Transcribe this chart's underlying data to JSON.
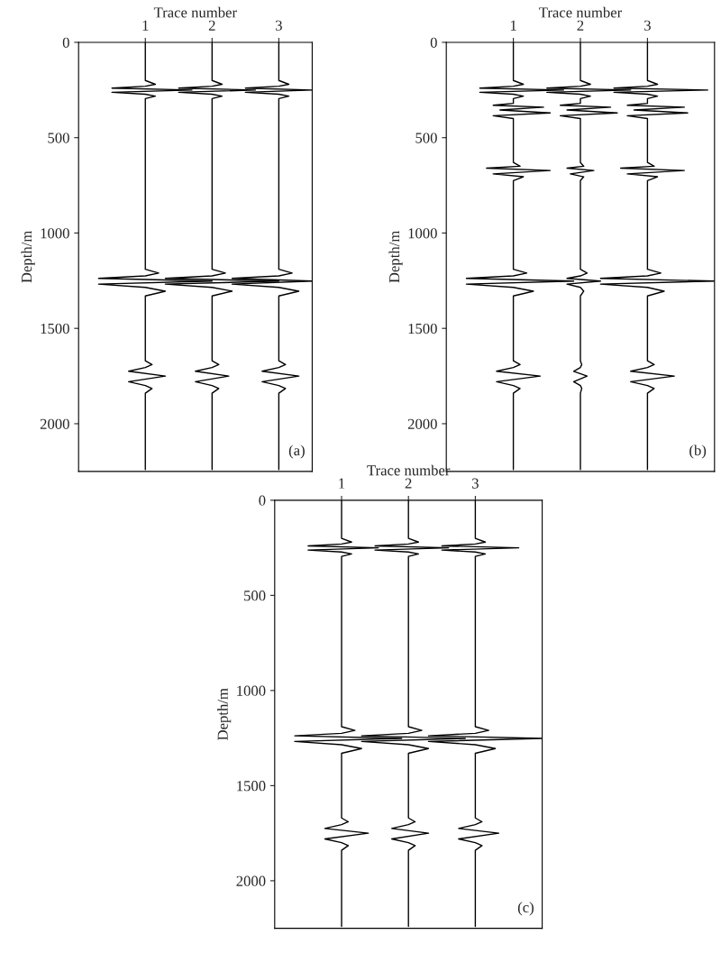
{
  "chart_data": [
    {
      "type": "line",
      "xlabel": "Trace number",
      "ylabel": "Depth/m",
      "xlim": [
        0,
        3.5
      ],
      "xticks": [
        1,
        2,
        3
      ],
      "ylim": [
        2250,
        0
      ],
      "yticks": [
        0,
        500,
        1000,
        1500,
        2000
      ],
      "grid": false,
      "legend": false,
      "line_style": "solid",
      "annotations": [
        "(a)"
      ],
      "series": [
        {
          "color": "#000000",
          "x": [
            1,
            1,
            1.15,
            1,
            0.5,
            1.7,
            0.5,
            1,
            1.15,
            1,
            1,
            1.2,
            1,
            0.3,
            2.0,
            0.3,
            1,
            1.3,
            1,
            1,
            1.1,
            1,
            0.75,
            1.3,
            0.75,
            1,
            1.1,
            1,
            1
          ],
          "values": [
            0,
            200,
            220,
            230,
            240,
            250,
            262,
            272,
            282,
            295,
            1190,
            1210,
            1225,
            1238,
            1252,
            1268,
            1285,
            1305,
            1330,
            1670,
            1690,
            1705,
            1725,
            1750,
            1780,
            1800,
            1815,
            1840,
            2240
          ]
        },
        {
          "color": "#000000",
          "x": [
            2,
            2,
            2.15,
            2,
            1.5,
            2.65,
            1.5,
            2,
            2.15,
            2,
            2,
            2.2,
            2,
            1.3,
            3.0,
            1.3,
            2,
            2.3,
            2,
            2,
            2.1,
            2,
            1.75,
            2.25,
            1.75,
            2,
            2.1,
            2,
            2
          ],
          "values": [
            0,
            200,
            220,
            230,
            240,
            250,
            262,
            272,
            282,
            295,
            1190,
            1210,
            1225,
            1238,
            1252,
            1268,
            1285,
            1305,
            1330,
            1670,
            1690,
            1705,
            1725,
            1750,
            1780,
            1800,
            1815,
            1840,
            2240
          ]
        },
        {
          "color": "#000000",
          "x": [
            3,
            3,
            3.15,
            3,
            2.5,
            3.5,
            2.5,
            3,
            3.15,
            3,
            3,
            3.2,
            3,
            2.3,
            3.5,
            2.3,
            3,
            3.3,
            3,
            3,
            3.1,
            3,
            2.75,
            3.3,
            2.75,
            3,
            3.1,
            3,
            3
          ],
          "values": [
            0,
            200,
            220,
            230,
            240,
            250,
            262,
            272,
            282,
            295,
            1190,
            1210,
            1225,
            1238,
            1252,
            1268,
            1285,
            1305,
            1330,
            1670,
            1690,
            1705,
            1725,
            1750,
            1780,
            1800,
            1815,
            1840,
            2240
          ]
        }
      ]
    },
    {
      "type": "line",
      "xlabel": "Trace number",
      "ylabel": "Depth/m",
      "xlim": [
        0,
        4
      ],
      "xticks": [
        1,
        2,
        3
      ],
      "ylim": [
        2250,
        0
      ],
      "yticks": [
        0,
        500,
        1000,
        1500,
        2000
      ],
      "grid": false,
      "legend": false,
      "line_style": "solid",
      "annotations": [
        "(b)"
      ],
      "series": [
        {
          "color": "#000000",
          "x": [
            1,
            1,
            1.15,
            1,
            0.5,
            1.75,
            0.5,
            1,
            1.15,
            1,
            1,
            0.7,
            1.45,
            0.8,
            1.55,
            0.7,
            1,
            1,
            1.1,
            0.6,
            1.55,
            0.7,
            1.15,
            1,
            1,
            1.2,
            1,
            0.3,
            1.9,
            0.3,
            1,
            1.3,
            1,
            1,
            1.1,
            1,
            0.75,
            1.4,
            0.75,
            1,
            1.1,
            1,
            1
          ],
          "values": [
            0,
            200,
            220,
            230,
            240,
            250,
            262,
            272,
            282,
            295,
            320,
            330,
            340,
            355,
            370,
            385,
            400,
            630,
            650,
            660,
            672,
            690,
            705,
            725,
            1190,
            1210,
            1225,
            1238,
            1252,
            1268,
            1285,
            1305,
            1330,
            1670,
            1690,
            1705,
            1725,
            1750,
            1780,
            1800,
            1815,
            1840,
            2240
          ]
        },
        {
          "color": "#000000",
          "x": [
            2,
            2,
            2.15,
            2,
            1.5,
            2.75,
            1.5,
            2,
            2.15,
            2,
            2,
            1.7,
            2.45,
            1.8,
            2.55,
            1.7,
            2,
            2,
            2.05,
            1.8,
            2.2,
            1.85,
            2.05,
            2,
            2,
            2.1,
            2,
            1.8,
            2.3,
            1.8,
            2,
            2.05,
            2,
            2,
            2.02,
            2,
            1.9,
            2.1,
            1.9,
            2,
            2.02,
            2,
            2
          ],
          "values": [
            0,
            200,
            220,
            230,
            240,
            250,
            262,
            272,
            282,
            295,
            320,
            330,
            340,
            355,
            370,
            385,
            400,
            630,
            650,
            660,
            672,
            690,
            705,
            725,
            1190,
            1210,
            1225,
            1238,
            1252,
            1268,
            1285,
            1305,
            1330,
            1670,
            1690,
            1705,
            1725,
            1750,
            1780,
            1800,
            1815,
            1840,
            2240
          ]
        },
        {
          "color": "#000000",
          "x": [
            3,
            3,
            3.15,
            3,
            2.5,
            3.9,
            2.5,
            3,
            3.15,
            3,
            3,
            2.7,
            3.55,
            2.8,
            3.6,
            2.7,
            3,
            3,
            3.1,
            2.6,
            3.55,
            2.7,
            3.15,
            3,
            3,
            3.2,
            3,
            2.3,
            4.0,
            2.3,
            3,
            3.25,
            3,
            3,
            3.1,
            3,
            2.75,
            3.4,
            2.75,
            3,
            3.1,
            3,
            3
          ],
          "values": [
            0,
            200,
            220,
            230,
            240,
            250,
            262,
            272,
            282,
            295,
            320,
            330,
            340,
            355,
            370,
            385,
            400,
            630,
            650,
            660,
            672,
            690,
            705,
            725,
            1190,
            1210,
            1225,
            1238,
            1252,
            1268,
            1285,
            1305,
            1330,
            1670,
            1690,
            1705,
            1725,
            1750,
            1780,
            1800,
            1815,
            1840,
            2240
          ]
        }
      ]
    },
    {
      "type": "line",
      "xlabel": "Trace number",
      "ylabel": "Depth/m",
      "xlim": [
        0,
        4
      ],
      "xticks": [
        1,
        2,
        3
      ],
      "ylim": [
        2250,
        0
      ],
      "yticks": [
        0,
        500,
        1000,
        1500,
        2000
      ],
      "grid": false,
      "legend": false,
      "line_style": "solid",
      "annotations": [
        "(c)"
      ],
      "series": [
        {
          "color": "#000000",
          "x": [
            1,
            1,
            1.15,
            1,
            0.5,
            1.55,
            0.5,
            1,
            1.15,
            1,
            1,
            1.2,
            1,
            0.3,
            1.9,
            0.3,
            1,
            1.3,
            1,
            1,
            1.1,
            1,
            0.75,
            1.4,
            0.75,
            1,
            1.1,
            1,
            1
          ],
          "values": [
            0,
            200,
            220,
            230,
            240,
            250,
            262,
            272,
            282,
            295,
            1190,
            1210,
            1225,
            1238,
            1252,
            1268,
            1285,
            1305,
            1330,
            1670,
            1690,
            1705,
            1725,
            1750,
            1780,
            1800,
            1815,
            1840,
            2240
          ]
        },
        {
          "color": "#000000",
          "x": [
            2,
            2,
            2.15,
            2,
            1.5,
            2.6,
            1.5,
            2,
            2.15,
            2,
            2,
            2.2,
            2,
            1.3,
            2.85,
            1.3,
            2,
            2.3,
            2,
            2,
            2.1,
            2,
            1.75,
            2.3,
            1.75,
            2,
            2.1,
            2,
            2
          ],
          "values": [
            0,
            200,
            220,
            230,
            240,
            250,
            262,
            272,
            282,
            295,
            1190,
            1210,
            1225,
            1238,
            1252,
            1268,
            1285,
            1305,
            1330,
            1670,
            1690,
            1705,
            1725,
            1750,
            1780,
            1800,
            1815,
            1840,
            2240
          ]
        },
        {
          "color": "#000000",
          "x": [
            3,
            3,
            3.15,
            3,
            2.5,
            3.65,
            2.5,
            3,
            3.15,
            3,
            3,
            3.2,
            3,
            2.3,
            4.0,
            2.3,
            3,
            3.3,
            3,
            3,
            3.1,
            3,
            2.75,
            3.35,
            2.75,
            3,
            3.1,
            3,
            3
          ],
          "values": [
            0,
            200,
            220,
            230,
            240,
            250,
            262,
            272,
            282,
            295,
            1190,
            1210,
            1225,
            1238,
            1252,
            1268,
            1285,
            1305,
            1330,
            1670,
            1690,
            1705,
            1725,
            1750,
            1780,
            1800,
            1815,
            1840,
            2240
          ]
        }
      ]
    }
  ]
}
